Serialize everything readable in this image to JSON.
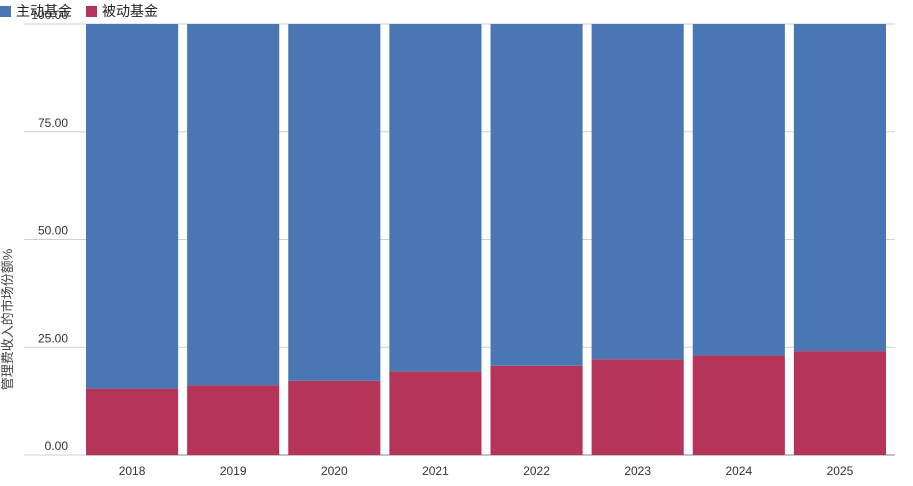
{
  "chart_data": {
    "type": "bar",
    "stacked": true,
    "title": "",
    "categories": [
      "2018",
      "2019",
      "2020",
      "2021",
      "2022",
      "2023",
      "2024",
      "2025"
    ],
    "series": [
      {
        "name": "被动基金",
        "color": "#b5345a",
        "values": [
          15.4,
          16.2,
          17.2,
          19.4,
          20.7,
          22.2,
          23.1,
          24.1
        ]
      },
      {
        "name": "主动基金",
        "color": "#4a77b4",
        "values": [
          84.6,
          83.8,
          82.8,
          80.6,
          79.3,
          77.8,
          76.9,
          75.9
        ]
      }
    ],
    "legend": [
      {
        "name": "主动基金",
        "color": "#4a77b4"
      },
      {
        "name": "被动基金",
        "color": "#b5345a"
      }
    ],
    "xlabel": "",
    "ylabel": "管理费收入的市场份额%",
    "ylim": [
      0,
      100
    ],
    "yticks": [
      "0.00",
      "25.00",
      "50.00",
      "75.00",
      "100.00"
    ],
    "legend_position": "top-left"
  }
}
